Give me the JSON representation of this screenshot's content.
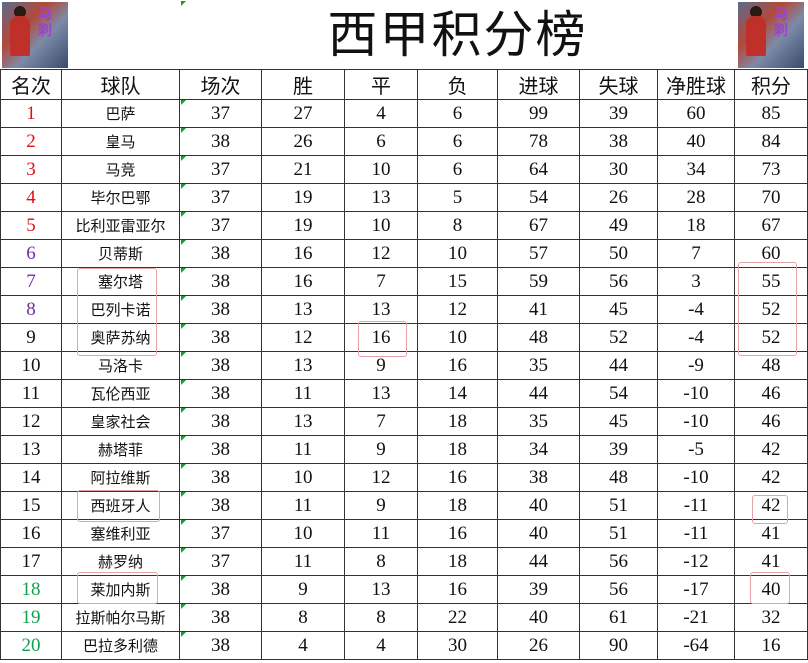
{
  "title": "西甲积分榜",
  "logo_text": "马刺",
  "colors": {
    "rank_top": "#e0101a",
    "rank_mid": "#7030a0",
    "rank_bottom": "#10a050",
    "highlight": "#e6a2a8"
  },
  "headers": [
    "名次",
    "球队",
    "场次",
    "胜",
    "平",
    "负",
    "进球",
    "失球",
    "净胜球",
    "积分"
  ],
  "rows": [
    [
      "1",
      "巴萨",
      "37",
      "27",
      "4",
      "6",
      "99",
      "39",
      "60",
      "85"
    ],
    [
      "2",
      "皇马",
      "38",
      "26",
      "6",
      "6",
      "78",
      "38",
      "40",
      "84"
    ],
    [
      "3",
      "马竞",
      "37",
      "21",
      "10",
      "6",
      "64",
      "30",
      "34",
      "73"
    ],
    [
      "4",
      "毕尔巴鄂",
      "37",
      "19",
      "13",
      "5",
      "54",
      "26",
      "28",
      "70"
    ],
    [
      "5",
      "比利亚雷亚尔",
      "37",
      "19",
      "10",
      "8",
      "67",
      "49",
      "18",
      "67"
    ],
    [
      "6",
      "贝蒂斯",
      "38",
      "16",
      "12",
      "10",
      "57",
      "50",
      "7",
      "60"
    ],
    [
      "7",
      "塞尔塔",
      "38",
      "16",
      "7",
      "15",
      "59",
      "56",
      "3",
      "55"
    ],
    [
      "8",
      "巴列卡诺",
      "38",
      "13",
      "13",
      "12",
      "41",
      "45",
      "-4",
      "52"
    ],
    [
      "9",
      "奥萨苏纳",
      "38",
      "12",
      "16",
      "10",
      "48",
      "52",
      "-4",
      "52"
    ],
    [
      "10",
      "马洛卡",
      "38",
      "13",
      "9",
      "16",
      "35",
      "44",
      "-9",
      "48"
    ],
    [
      "11",
      "瓦伦西亚",
      "38",
      "11",
      "13",
      "14",
      "44",
      "54",
      "-10",
      "46"
    ],
    [
      "12",
      "皇家社会",
      "38",
      "13",
      "7",
      "18",
      "35",
      "45",
      "-10",
      "46"
    ],
    [
      "13",
      "赫塔菲",
      "38",
      "11",
      "9",
      "18",
      "34",
      "39",
      "-5",
      "42"
    ],
    [
      "14",
      "阿拉维斯",
      "38",
      "10",
      "12",
      "16",
      "38",
      "48",
      "-10",
      "42"
    ],
    [
      "15",
      "西班牙人",
      "38",
      "11",
      "9",
      "18",
      "40",
      "51",
      "-11",
      "42"
    ],
    [
      "16",
      "塞维利亚",
      "37",
      "10",
      "11",
      "16",
      "40",
      "51",
      "-11",
      "41"
    ],
    [
      "17",
      "赫罗纳",
      "37",
      "11",
      "8",
      "18",
      "44",
      "56",
      "-12",
      "41"
    ],
    [
      "18",
      "莱加内斯",
      "38",
      "9",
      "13",
      "16",
      "39",
      "56",
      "-17",
      "40"
    ],
    [
      "19",
      "拉斯帕尔马斯",
      "38",
      "8",
      "8",
      "22",
      "40",
      "61",
      "-21",
      "32"
    ],
    [
      "20",
      "巴拉多利德",
      "38",
      "4",
      "4",
      "30",
      "26",
      "90",
      "-64",
      "16"
    ]
  ]
}
